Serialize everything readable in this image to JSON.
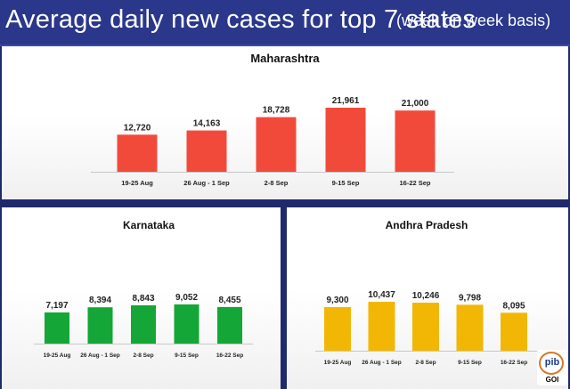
{
  "title": {
    "main": "Average daily new cases for top 7 states",
    "sub": "(week on week basis)"
  },
  "logo": {
    "text": "pib",
    "sub": "GOI"
  },
  "colors": {
    "maharashtra": "#f24a3a",
    "karnataka": "#14a637",
    "andhra": "#f2b705",
    "background": "#1f2a6b"
  },
  "chart_data": [
    {
      "type": "bar",
      "title": "Maharashtra",
      "categories": [
        "19-25 Aug",
        "26 Aug - 1 Sep",
        "2-8 Sep",
        "9-15 Sep",
        "16-22 Sep"
      ],
      "values": [
        12720,
        14163,
        18728,
        21961,
        21000
      ],
      "value_labels": [
        "12,720",
        "14,163",
        "18,728",
        "21,961",
        "21,000"
      ],
      "xlabel": "",
      "ylabel": "",
      "ylim": [
        0,
        22500
      ]
    },
    {
      "type": "bar",
      "title": "Karnataka",
      "categories": [
        "19-25 Aug",
        "26 Aug - 1 Sep",
        "2-8 Sep",
        "9-15 Sep",
        "16-22 Sep"
      ],
      "values": [
        7197,
        8394,
        8843,
        9052,
        8455
      ],
      "value_labels": [
        "7,197",
        "8,394",
        "8,843",
        "9,052",
        "8,455"
      ],
      "xlabel": "",
      "ylabel": "",
      "ylim": [
        0,
        9500
      ]
    },
    {
      "type": "bar",
      "title": "Andhra Pradesh",
      "categories": [
        "19-25 Aug",
        "26 Aug - 1 Sep",
        "2-8 Sep",
        "9-15 Sep",
        "16-22 Sep"
      ],
      "values": [
        9300,
        10437,
        10246,
        9798,
        8095
      ],
      "value_labels": [
        "9,300",
        "10,437",
        "10,246",
        "9,798",
        "8,095"
      ],
      "xlabel": "",
      "ylabel": "",
      "ylim": [
        0,
        11000
      ]
    }
  ]
}
